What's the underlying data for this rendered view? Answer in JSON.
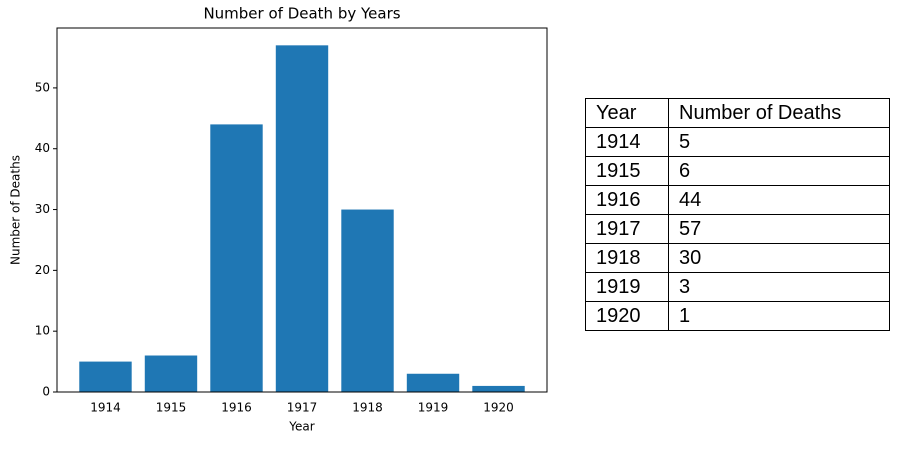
{
  "chart_data": {
    "type": "bar",
    "title": "Number of Death by Years",
    "x_label": "Year",
    "y_label": "Number of Deaths",
    "categories": [
      "1914",
      "1915",
      "1916",
      "1917",
      "1918",
      "1919",
      "1920"
    ],
    "values": [
      5,
      6,
      44,
      57,
      30,
      3,
      1
    ],
    "color": "#1f77b4",
    "ylim": [
      0,
      59.85
    ],
    "yticks": [
      0,
      10,
      20,
      30,
      40,
      50
    ],
    "grid": false
  },
  "table": {
    "columns": [
      "Year",
      "Number of Deaths"
    ],
    "rows": [
      [
        1914,
        5
      ],
      [
        1915,
        6
      ],
      [
        1916,
        44
      ],
      [
        1917,
        57
      ],
      [
        1918,
        30
      ],
      [
        1919,
        3
      ],
      [
        1920,
        1
      ]
    ]
  }
}
